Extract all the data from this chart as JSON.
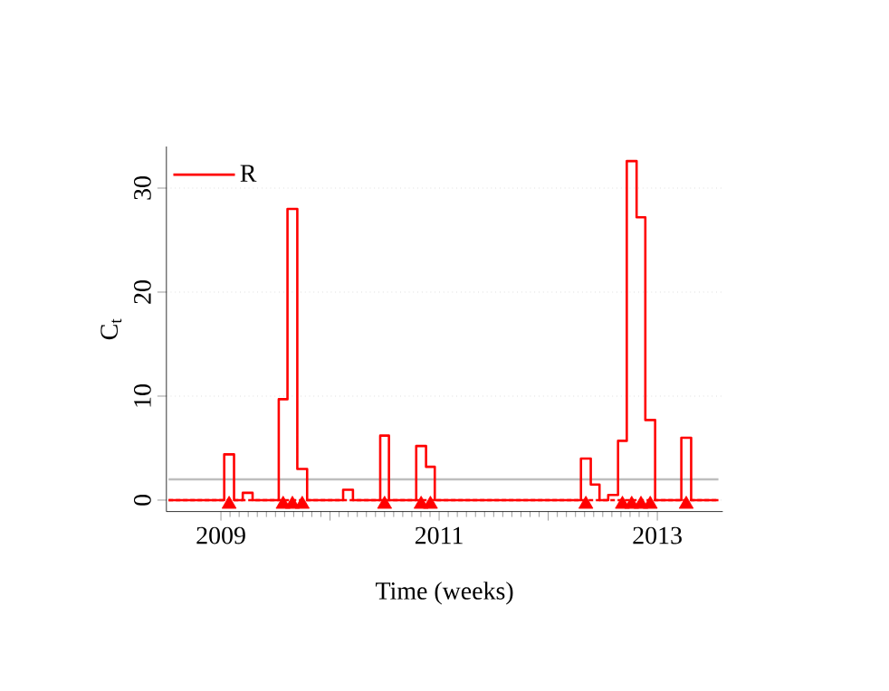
{
  "chart_data": {
    "type": "step",
    "xlabel": "Time (weeks)",
    "ylabel": "C$_{t}$",
    "x": [
      2008.52,
      2009.03,
      2009.12,
      2009.2,
      2009.29,
      2009.53,
      2009.61,
      2009.7,
      2009.79,
      2010.12,
      2010.21,
      2010.46,
      2010.54,
      2010.79,
      2010.88,
      2010.96,
      2012.3,
      2012.39,
      2012.47,
      2012.55,
      2012.64,
      2012.72,
      2012.81,
      2012.89,
      2012.98,
      2013.22,
      2013.31,
      2013.56
    ],
    "series": [
      {
        "name": "R",
        "color": "#ff0000",
        "values": [
          0,
          4.4,
          0,
          0.7,
          0,
          9.7,
          28,
          3,
          0,
          1,
          0,
          6.2,
          0,
          5.2,
          3.2,
          0,
          4,
          1.5,
          0,
          0.5,
          5.7,
          32.6,
          27.2,
          7.7,
          0,
          6,
          0,
          0
        ]
      },
      {
        "type": "scatter",
        "marker": "triangle",
        "color": "#ff0000",
        "x": [
          2009.075,
          2009.57,
          2009.655,
          2009.745,
          2010.5,
          2010.835,
          2010.92,
          2012.345,
          2012.68,
          2012.765,
          2012.85,
          2012.935,
          2013.265
        ],
        "values": [
          -0.4,
          -0.4,
          -0.4,
          -0.4,
          -0.4,
          -0.4,
          -0.4,
          -0.4,
          -0.4,
          -0.4,
          -0.4,
          -0.4,
          -0.4
        ]
      }
    ],
    "xlim": [
      2008.5,
      2013.6
    ],
    "ylim": [
      -1.1,
      34
    ],
    "xticks": [
      2009,
      {
        "value": 2010,
        "label": null
      },
      2011,
      {
        "value": 2012,
        "label": null
      },
      2013
    ],
    "yticks": [
      0,
      10,
      20,
      30
    ],
    "grid": "y",
    "legend": "top left",
    "ref_lines": [
      {
        "axis": "y",
        "value": 2,
        "color": "#bebebe",
        "line_style": "solid"
      },
      {
        "axis": "y",
        "value": 0,
        "color": "#ff0000",
        "line_style": "dashed"
      }
    ]
  }
}
